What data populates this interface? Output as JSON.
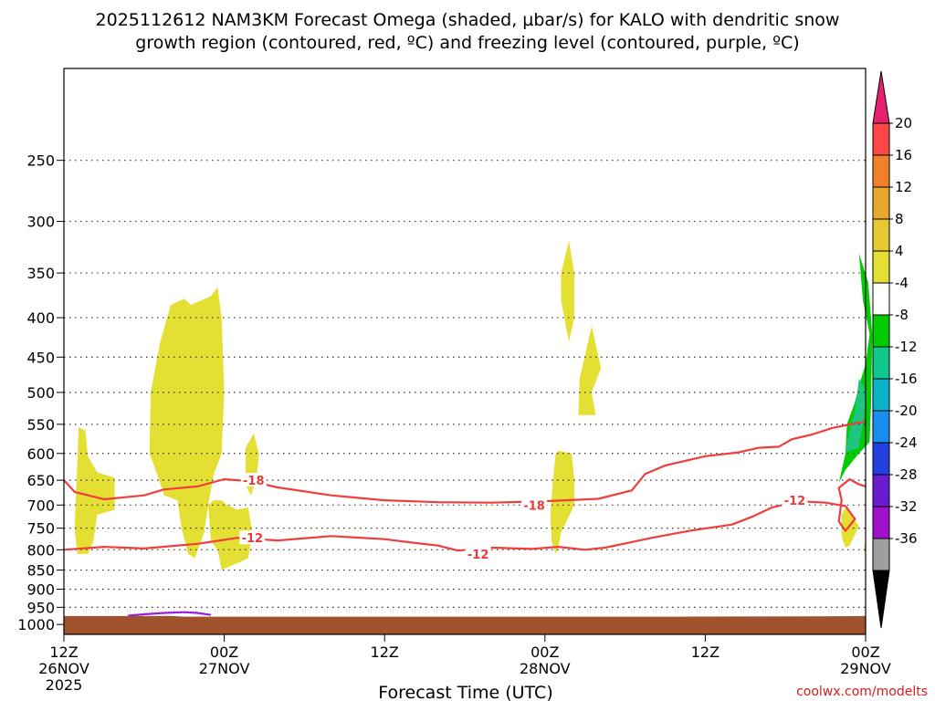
{
  "title_line1": "2025112612 NAM3KM Forecast Omega (shaded, µbar/s) for KALO with dendritic snow",
  "title_line2": "growth region (contoured, red, ºC) and freezing level (contoured, purple, ºC)",
  "credit": "coolwx.com/modelts",
  "chart_data": {
    "type": "time-height cross section",
    "xlabel": "Forecast Time (UTC)",
    "ylabel": "",
    "x_unit": "forecast hour",
    "xlim": [
      0,
      60
    ],
    "ylim_hPa": [
      1030,
      190
    ],
    "pressure_levels": [
      250,
      300,
      350,
      400,
      450,
      500,
      550,
      600,
      650,
      700,
      750,
      800,
      850,
      900,
      950,
      1000
    ],
    "x_ticks": [
      {
        "hour": 0,
        "label": [
          "12Z",
          "26NOV",
          "2025"
        ]
      },
      {
        "hour": 12,
        "label": [
          "00Z",
          "27NOV"
        ]
      },
      {
        "hour": 24,
        "label": [
          "12Z"
        ]
      },
      {
        "hour": 36,
        "label": [
          "00Z",
          "28NOV"
        ]
      },
      {
        "hour": 48,
        "label": [
          "12Z"
        ]
      },
      {
        "hour": 60,
        "label": [
          "00Z",
          "29NOV"
        ]
      }
    ],
    "colorbar": {
      "labels": [
        "20",
        "16",
        "12",
        "8",
        "4",
        "-4",
        "-8",
        "-12",
        "-16",
        "-20",
        "-24",
        "-28",
        "-32",
        "-36"
      ],
      "colors": [
        "#e5216f",
        "#ff4646",
        "#f0812a",
        "#e6a82d",
        "#e7ca33",
        "#e4e033",
        "#ffffff",
        "#00cc00",
        "#10c78c",
        "#08b3c8",
        "#1a8cee",
        "#2440e0",
        "#6a1bd0",
        "#a010cc",
        "#9e9e9e",
        "#000000"
      ]
    },
    "contours": [
      {
        "name": "-18",
        "color": "#ef3e3e",
        "labels": [
          {
            "text": "-18",
            "hour": 14.2,
            "hPa": 650
          },
          {
            "text": "-18",
            "hour": 35.2,
            "hPa": 700
          }
        ],
        "points": [
          [
            0,
            650
          ],
          [
            0.8,
            673
          ],
          [
            3,
            688
          ],
          [
            6,
            680
          ],
          [
            7.5,
            668
          ],
          [
            10,
            662
          ],
          [
            12,
            648
          ],
          [
            14,
            652
          ],
          [
            16,
            664
          ],
          [
            20,
            680
          ],
          [
            24,
            690
          ],
          [
            28,
            694
          ],
          [
            32,
            695
          ],
          [
            36,
            692
          ],
          [
            40,
            687
          ],
          [
            42.5,
            670
          ],
          [
            43.5,
            638
          ],
          [
            45,
            622
          ],
          [
            48,
            605
          ],
          [
            50.5,
            598
          ],
          [
            52,
            590
          ],
          [
            53.5,
            588
          ],
          [
            54.5,
            575
          ],
          [
            56,
            567
          ],
          [
            57.5,
            556
          ],
          [
            60,
            545
          ]
        ]
      },
      {
        "name": "-12",
        "color": "#ef3e3e",
        "labels": [
          {
            "text": "-12",
            "hour": 14.1,
            "hPa": 772
          },
          {
            "text": "-12",
            "hour": 31,
            "hPa": 810
          },
          {
            "text": "-12",
            "hour": 54.7,
            "hPa": 690
          }
        ],
        "points": [
          [
            0,
            800
          ],
          [
            3,
            793
          ],
          [
            6,
            797
          ],
          [
            10,
            786
          ],
          [
            13,
            772
          ],
          [
            16,
            778
          ],
          [
            20,
            768
          ],
          [
            24,
            775
          ],
          [
            26,
            783
          ],
          [
            28,
            790
          ],
          [
            29.5,
            802
          ],
          [
            32,
            795
          ],
          [
            35,
            798
          ],
          [
            37,
            793
          ],
          [
            39,
            800
          ],
          [
            40.5,
            795
          ],
          [
            42,
            785
          ],
          [
            44,
            772
          ],
          [
            47,
            755
          ],
          [
            50,
            742
          ],
          [
            51.5,
            725
          ],
          [
            53,
            705
          ],
          [
            55,
            692
          ],
          [
            57,
            695
          ],
          [
            58.5,
            702
          ],
          [
            59.2,
            730
          ],
          [
            58.5,
            756
          ],
          [
            58,
            735
          ],
          [
            58.2,
            690
          ],
          [
            58,
            665
          ],
          [
            58.8,
            648
          ],
          [
            59.5,
            658
          ],
          [
            60,
            662
          ]
        ]
      },
      {
        "name": "freezing level",
        "color": "#9a1fd6",
        "labels": [],
        "points": [
          [
            4.8,
            974
          ],
          [
            6,
            970
          ],
          [
            7.5,
            966
          ],
          [
            9,
            964
          ],
          [
            10,
            966
          ],
          [
            11,
            972
          ]
        ]
      }
    ],
    "shaded_regions": [
      {
        "name": "omega +4 to +8",
        "color": "#e4e033",
        "value_range": [
          4,
          8
        ],
        "polygons": [
          [
            [
              1,
              620
            ],
            [
              1.1,
              555
            ],
            [
              1.6,
              560
            ],
            [
              1.8,
              605
            ],
            [
              2.5,
              635
            ],
            [
              3.8,
              645
            ],
            [
              3.8,
              710
            ],
            [
              2.5,
              720
            ],
            [
              2.2,
              780
            ],
            [
              1.8,
              810
            ],
            [
              1,
              810
            ],
            [
              0.8,
              750
            ]
          ],
          [
            [
              6.4,
              600
            ],
            [
              6.5,
              500
            ],
            [
              7.2,
              430
            ],
            [
              8,
              385
            ],
            [
              9,
              378
            ],
            [
              9.5,
              385
            ],
            [
              11,
              375
            ],
            [
              11.5,
              365
            ],
            [
              11.8,
              400
            ],
            [
              12,
              500
            ],
            [
              11.8,
              600
            ],
            [
              11.2,
              640
            ],
            [
              10.8,
              700
            ],
            [
              10.5,
              760
            ],
            [
              9.8,
              820
            ],
            [
              9.3,
              810
            ],
            [
              8.8,
              750
            ],
            [
              8.5,
              690
            ],
            [
              7.5,
              680
            ],
            [
              7,
              640
            ]
          ],
          [
            [
              10.8,
              700
            ],
            [
              11.2,
              690
            ],
            [
              11.8,
              690
            ],
            [
              12.2,
              700
            ],
            [
              13,
              710
            ],
            [
              13.8,
              705
            ],
            [
              14.1,
              760
            ],
            [
              13.8,
              820
            ],
            [
              13.2,
              830
            ],
            [
              12.8,
              835
            ],
            [
              11.8,
              850
            ],
            [
              11.5,
              800
            ],
            [
              11,
              780
            ]
          ],
          [
            [
              13.6,
              590
            ],
            [
              14.2,
              565
            ],
            [
              14.6,
              600
            ],
            [
              14.4,
              650
            ],
            [
              14,
              680
            ],
            [
              13.6,
              660
            ]
          ],
          [
            [
              36.8,
              602
            ],
            [
              37,
              595
            ],
            [
              38,
              600
            ],
            [
              38.2,
              650
            ],
            [
              38.2,
              700
            ],
            [
              37.2,
              760
            ],
            [
              37,
              795
            ],
            [
              36.8,
              810
            ],
            [
              36.5,
              780
            ],
            [
              36.4,
              720
            ],
            [
              36.6,
              650
            ]
          ],
          [
            [
              37.2,
              350
            ],
            [
              37.8,
              318
            ],
            [
              38.2,
              350
            ],
            [
              38.2,
              400
            ],
            [
              37.8,
              430
            ],
            [
              37.2,
              380
            ]
          ],
          [
            [
              38.5,
              535
            ],
            [
              38.6,
              480
            ],
            [
              39.5,
              410
            ],
            [
              40.2,
              465
            ],
            [
              39.5,
              500
            ],
            [
              39.8,
              535
            ]
          ],
          [
            [
              58.2,
              720
            ],
            [
              58.5,
              705
            ],
            [
              59.5,
              745
            ],
            [
              58.8,
              790
            ],
            [
              58.5,
              795
            ],
            [
              58.2,
              770
            ]
          ],
          [
            [
              59.9,
              785
            ],
            [
              60,
              785
            ],
            [
              60,
              810
            ],
            [
              59.9,
              800
            ]
          ]
        ]
      },
      {
        "name": "omega -8 to -4",
        "color": "#00cc00",
        "value_range": [
          -8,
          -4
        ],
        "polygons": [
          [
            [
              58,
              655
            ],
            [
              58.5,
              600
            ],
            [
              58.6,
              550
            ],
            [
              59.2,
              515
            ],
            [
              59.5,
              490
            ],
            [
              60,
              460
            ],
            [
              60.3,
              420
            ],
            [
              59.8,
              380
            ],
            [
              59.5,
              330
            ],
            [
              60.2,
              360
            ],
            [
              60.5,
              420
            ],
            [
              60.4,
              520
            ],
            [
              60.3,
              580
            ],
            [
              59.5,
              600
            ],
            [
              58.5,
              630
            ]
          ]
        ]
      },
      {
        "name": "omega -12 to -8",
        "color": "#1ec47f",
        "value_range": [
          -12,
          -8
        ],
        "polygons": [
          [
            [
              58.5,
              598
            ],
            [
              58.8,
              560
            ],
            [
              59.2,
              530
            ],
            [
              59.5,
              480
            ],
            [
              60.1,
              500
            ],
            [
              59.8,
              550
            ],
            [
              59.5,
              590
            ]
          ]
        ]
      }
    ],
    "terrain_hPa_approx": 975,
    "terrain_color": "#a0522d"
  }
}
